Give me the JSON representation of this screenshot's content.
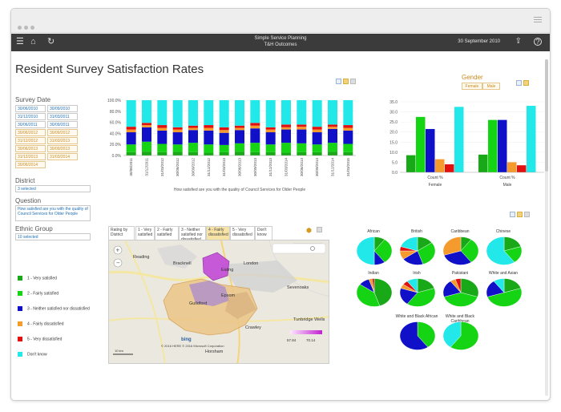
{
  "app": {
    "title": "Simple Service Planning",
    "subtitle": "T&H Outcomes",
    "date": "30 September 2010"
  },
  "page_title": "Resident Survey Satisfaction Rates",
  "filters": {
    "survey_date_label": "Survey Date",
    "dates_col1": [
      "30/06/2010",
      "31/12/2010",
      "30/06/2011",
      "30/06/2012",
      "31/12/2012",
      "30/06/2013",
      "31/12/2013",
      "30/06/2014"
    ],
    "dates_col2": [
      "30/09/2010",
      "31/03/2011",
      "30/09/2011",
      "30/09/2012",
      "31/03/2013",
      "30/09/2013",
      "31/03/2014",
      ""
    ],
    "district_label": "District",
    "district_value": "3 selected",
    "question_label": "Question",
    "question_value": "How satisfied are you with the quality of Council Services for Older People",
    "ethnic_label": "Ethnic Group",
    "ethnic_value": "10 selected"
  },
  "legend": [
    {
      "label": "1 - Very satisfied",
      "color": "#18a818"
    },
    {
      "label": "2 - Fairly satisfied",
      "color": "#14d414"
    },
    {
      "label": "3 - Neither satisfied nor dissatisfied",
      "color": "#1010c8"
    },
    {
      "label": "4 - Fairly dissatisfied",
      "color": "#f59a2c"
    },
    {
      "label": "5 - Very dissatisfied",
      "color": "#e31010"
    },
    {
      "label": "Don't know",
      "color": "#22e8ea"
    }
  ],
  "chart_data": [
    {
      "type": "bar",
      "stacked": true,
      "xlabel": "How satisfied are you with the quality of  Council Services for Older People",
      "ylim": [
        0,
        100
      ],
      "y_ticks": [
        "0.0%",
        "20.0%",
        "40.0%",
        "60.0%",
        "80.0%",
        "100.0%"
      ],
      "categories": [
        "30/06/2011",
        "31/12/2011",
        "31/03/2012",
        "30/06/2012",
        "30/09/2012",
        "31/12/2012",
        "31/03/2013",
        "30/06/2013",
        "30/09/2013",
        "31/12/2013",
        "31/03/2014",
        "30/06/2014",
        "30/09/2014",
        "31/12/2014",
        "31/03/2015"
      ],
      "series": [
        {
          "name": "1 - Very satisfied",
          "values": [
            6,
            7,
            6,
            7,
            6,
            5,
            6,
            7,
            6,
            6,
            5,
            6,
            6,
            7,
            6
          ]
        },
        {
          "name": "2 - Fairly satisfied",
          "values": [
            14,
            18,
            15,
            13,
            17,
            15,
            13,
            15,
            17,
            14,
            18,
            16,
            14,
            16,
            15
          ]
        },
        {
          "name": "3 - Neither satisfied nor dissatisfied",
          "values": [
            22,
            26,
            24,
            22,
            23,
            25,
            22,
            24,
            26,
            22,
            24,
            25,
            22,
            25,
            24
          ]
        },
        {
          "name": "4 - Fairly dissatisfied",
          "values": [
            5,
            4,
            5,
            5,
            4,
            5,
            5,
            4,
            5,
            5,
            4,
            5,
            5,
            4,
            5
          ]
        },
        {
          "name": "5 - Very dissatisfied",
          "values": [
            5,
            4,
            5,
            4,
            4,
            5,
            5,
            4,
            5,
            4,
            5,
            4,
            5,
            4,
            5
          ]
        },
        {
          "name": "Don't know",
          "values": [
            48,
            41,
            45,
            49,
            46,
            45,
            49,
            46,
            41,
            49,
            44,
            44,
            48,
            44,
            45
          ]
        }
      ]
    },
    {
      "type": "bar",
      "title": "Gender",
      "categories": [
        "Female",
        "Male"
      ],
      "xlabel_per_group": "Count %",
      "ylim": [
        0,
        35
      ],
      "y_ticks": [
        "0.0",
        "5.0",
        "10.0",
        "15.0",
        "20.0",
        "25.0",
        "30.0",
        "35.0"
      ],
      "series": [
        {
          "name": "1 - Very satisfied",
          "values": [
            8.5,
            8.8
          ]
        },
        {
          "name": "2 - Fairly satisfied",
          "values": [
            27.5,
            26.0
          ]
        },
        {
          "name": "3 - Neither satisfied nor dissatisfied",
          "values": [
            21.5,
            26.0
          ]
        },
        {
          "name": "4 - Fairly dissatisfied",
          "values": [
            6.5,
            5.0
          ]
        },
        {
          "name": "5 - Very dissatisfied",
          "values": [
            4.0,
            3.5
          ]
        },
        {
          "name": "Don't know",
          "values": [
            32.5,
            33.0
          ]
        }
      ]
    },
    {
      "type": "pie",
      "pies": [
        {
          "name": "African",
          "values": [
            10,
            30,
            10,
            0,
            0,
            50
          ]
        },
        {
          "name": "British",
          "values": [
            15,
            30,
            20,
            10,
            5,
            20
          ]
        },
        {
          "name": "Caribbean",
          "values": [
            10,
            30,
            30,
            30,
            0,
            0
          ]
        },
        {
          "name": "Chinese",
          "values": [
            20,
            20,
            0,
            0,
            0,
            60
          ]
        },
        {
          "name": "Indian",
          "values": [
            45,
            40,
            10,
            3,
            2,
            0
          ]
        },
        {
          "name": "Irish",
          "values": [
            20,
            40,
            20,
            5,
            5,
            10
          ]
        },
        {
          "name": "Pakistani",
          "values": [
            30,
            40,
            20,
            5,
            5,
            0
          ]
        },
        {
          "name": "White and Asian",
          "values": [
            20,
            50,
            20,
            0,
            0,
            10
          ]
        },
        {
          "name": "White and Black African",
          "values": [
            0,
            40,
            60,
            0,
            0,
            0
          ]
        },
        {
          "name": "White and Black Caribbean",
          "values": [
            0,
            60,
            0,
            0,
            0,
            40
          ]
        }
      ]
    }
  ],
  "gender": {
    "label": "Gender",
    "female": "Female",
    "male": "Male"
  },
  "map": {
    "tab_rating": "Rating by District",
    "tabs": [
      "1 - Very satisfied",
      "2 - Fairly satisfied",
      "3 - Neither satisfied nor dissatisfied",
      "4 - Fairly dissatisfied",
      "5 - Very dissatisfied",
      "Don't know"
    ],
    "places": [
      "Reading",
      "Bracknell",
      "Ealing",
      "London",
      "Sevenoaks",
      "Crawley",
      "Tunbridge Wells",
      "Guildford",
      "Horsham",
      "Epsom"
    ],
    "scale_min": "57.84",
    "scale_max": "70.14",
    "attribution": "© 2016 HERE © 2016 Microsoft Corporation",
    "bing": "bing",
    "scale_text": "10 km"
  }
}
